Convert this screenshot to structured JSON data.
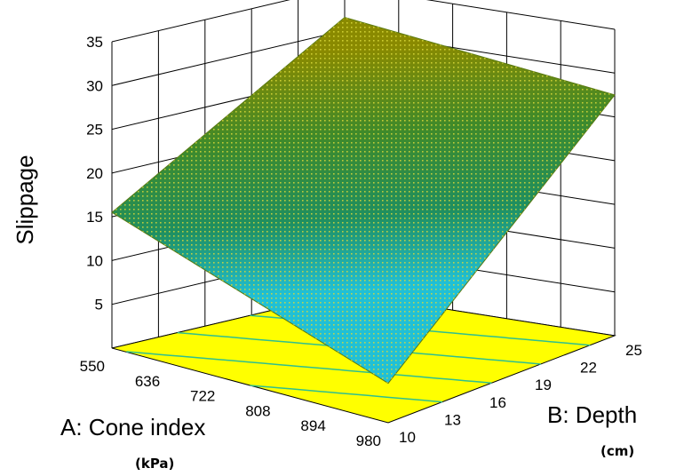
{
  "chart_data": {
    "type": "surface3d",
    "title": "",
    "zlabel": "Slippage",
    "xlabel": "A: Cone index",
    "xunit": "(kPa)",
    "ylabel": "B: Depth",
    "yunit": "(cm)",
    "x_ticks": [
      "550",
      "636",
      "722",
      "808",
      "894",
      "980"
    ],
    "y_ticks": [
      "10",
      "13",
      "16",
      "19",
      "22",
      "25"
    ],
    "z_ticks": [
      "5",
      "10",
      "15",
      "20",
      "25",
      "30",
      "35"
    ],
    "xlim": [
      550,
      980
    ],
    "ylim": [
      10,
      25
    ],
    "zlim": [
      0,
      35
    ],
    "surface_corners": [
      {
        "x": 550,
        "y": 10,
        "z": 15.5
      },
      {
        "x": 550,
        "y": 25,
        "z": 31.5
      },
      {
        "x": 980,
        "y": 25,
        "z": 27.5
      },
      {
        "x": 980,
        "y": 10,
        "z": 4.5
      }
    ],
    "grid": true,
    "colors": {
      "surface_high": "#7f7f00",
      "surface_mid": "#1f8a3a",
      "surface_low": "#1fb4c8",
      "surface_mesh": "#d7d321",
      "floor_fill": "#ffff00",
      "contour": "#2fbf8f"
    }
  }
}
